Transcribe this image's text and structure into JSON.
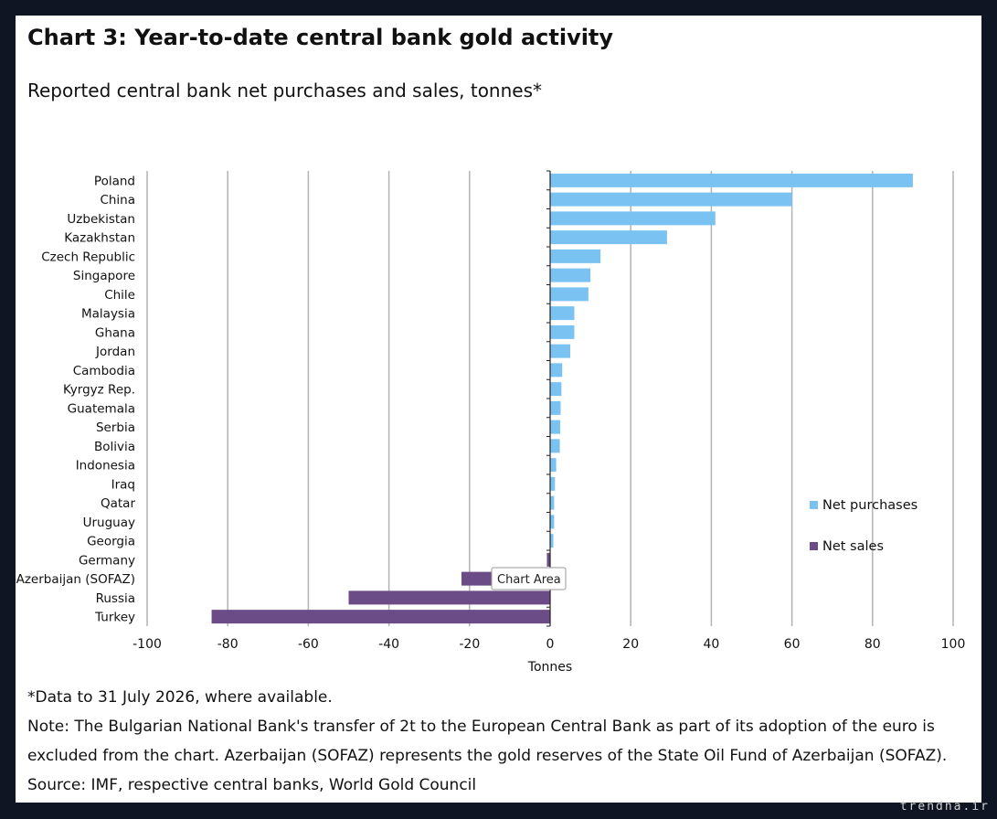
{
  "title": "Chart 3: Year-to-date central bank gold activity",
  "subtitle": "Reported central bank net purchases and sales, tonnes*",
  "tooltip": "Chart Area",
  "notes": {
    "line1": "*Data to 31 July 2026, where available.",
    "line2": "Note: The Bulgarian National Bank's transfer of 2t to the European Central Bank as part of its adoption of the euro is",
    "line3": "excluded from the chart. Azerbaijan (SOFAZ) represents the gold reserves of the State Oil Fund of Azerbaijan (SOFAZ).",
    "line4": "Source: IMF, respective central banks, World Gold Council"
  },
  "watermark": "trendna.ir",
  "chart_data": {
    "type": "bar",
    "orientation": "horizontal",
    "xlabel": "Tonnes",
    "xlim": [
      -100,
      100
    ],
    "xticks": [
      "-100",
      "-80",
      "-60",
      "-40",
      "-20",
      "0",
      "20",
      "40",
      "60",
      "80",
      "100"
    ],
    "grid": "vertical",
    "legend_position": "right",
    "colors": {
      "purchases": "#7ac2f2",
      "sales": "#6b4c87"
    },
    "categories": [
      "Poland",
      "China",
      "Uzbekistan",
      "Kazakhstan",
      "Czech Republic",
      "Singapore",
      "Chile",
      "Malaysia",
      "Ghana",
      "Jordan",
      "Cambodia",
      "Kyrgyz Rep.",
      "Guatemala",
      "Serbia",
      "Bolivia",
      "Indonesia",
      "Iraq",
      "Qatar",
      "Uruguay",
      "Georgia",
      "Germany",
      "Azerbaijan (SOFAZ)",
      "Russia",
      "Turkey"
    ],
    "series": [
      {
        "name": "Net purchases",
        "values": [
          90,
          60,
          41,
          29,
          12.5,
          10,
          9.5,
          6,
          6,
          5,
          3,
          2.8,
          2.6,
          2.5,
          2.4,
          1.5,
          1.2,
          1,
          1,
          0.8,
          null,
          null,
          null,
          null
        ]
      },
      {
        "name": "Net sales",
        "values": [
          null,
          null,
          null,
          null,
          null,
          null,
          null,
          null,
          null,
          null,
          null,
          null,
          null,
          null,
          null,
          null,
          null,
          null,
          null,
          null,
          -0.8,
          -22,
          -50,
          -84
        ]
      }
    ]
  }
}
